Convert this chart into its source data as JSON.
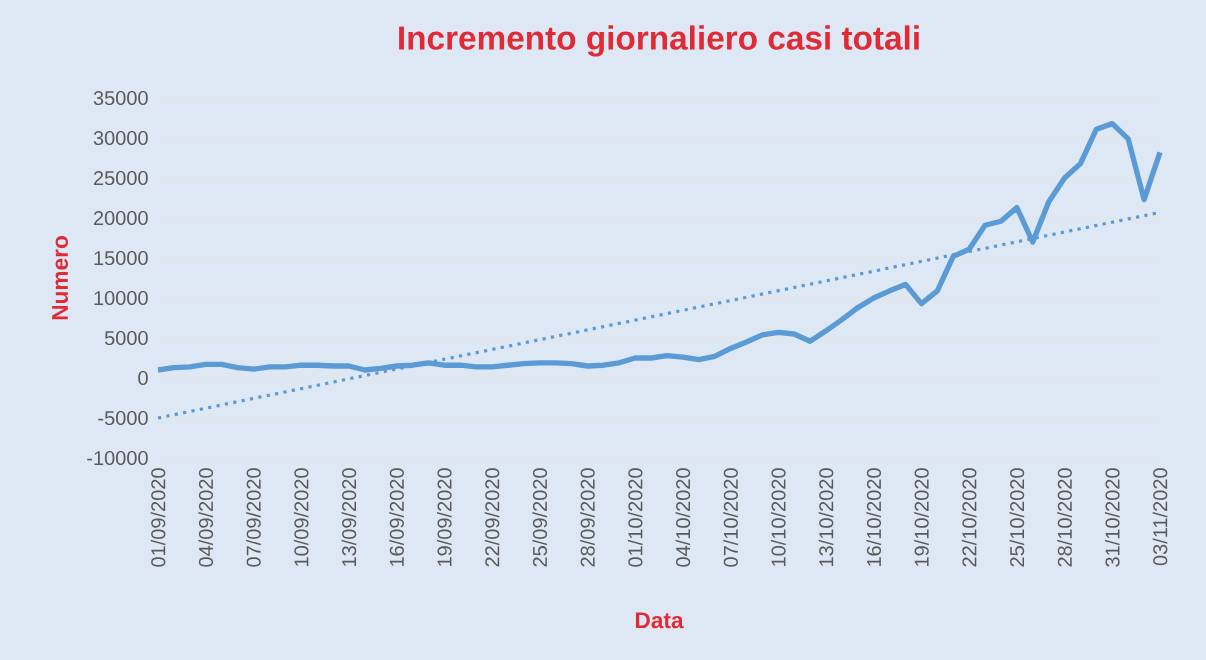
{
  "chart_data": {
    "type": "line",
    "title": "Incremento giornaliero casi totali",
    "xlabel": "Data",
    "ylabel": "Numero",
    "x": [
      "2020-09-01",
      "2020-09-02",
      "2020-09-03",
      "2020-09-04",
      "2020-09-05",
      "2020-09-06",
      "2020-09-07",
      "2020-09-08",
      "2020-09-09",
      "2020-09-10",
      "2020-09-11",
      "2020-09-12",
      "2020-09-13",
      "2020-09-14",
      "2020-09-15",
      "2020-09-16",
      "2020-09-17",
      "2020-09-18",
      "2020-09-19",
      "2020-09-20",
      "2020-09-21",
      "2020-09-22",
      "2020-09-23",
      "2020-09-24",
      "2020-09-25",
      "2020-09-26",
      "2020-09-27",
      "2020-09-28",
      "2020-09-29",
      "2020-09-30",
      "2020-10-01",
      "2020-10-02",
      "2020-10-03",
      "2020-10-04",
      "2020-10-05",
      "2020-10-06",
      "2020-10-07",
      "2020-10-08",
      "2020-10-09",
      "2020-10-10",
      "2020-10-11",
      "2020-10-12",
      "2020-10-13",
      "2020-10-14",
      "2020-10-15",
      "2020-10-16",
      "2020-10-17",
      "2020-10-18",
      "2020-10-19",
      "2020-10-20",
      "2020-10-21",
      "2020-10-22",
      "2020-10-23",
      "2020-10-24",
      "2020-10-25",
      "2020-10-26",
      "2020-10-27",
      "2020-10-28",
      "2020-10-29",
      "2020-10-30",
      "2020-10-31",
      "2020-11-01",
      "2020-11-02",
      "2020-11-03"
    ],
    "series": [
      {
        "color": "#5b9bd5",
        "line_style": "solid",
        "values": [
          1000,
          1300,
          1400,
          1700,
          1700,
          1300,
          1100,
          1400,
          1400,
          1600,
          1600,
          1500,
          1500,
          1000,
          1200,
          1500,
          1600,
          1900,
          1600,
          1600,
          1400,
          1400,
          1600,
          1800,
          1900,
          1900,
          1800,
          1500,
          1600,
          1900,
          2500,
          2500,
          2800,
          2600,
          2300,
          2700,
          3700,
          4500,
          5400,
          5700,
          5500,
          4600,
          5900,
          7300,
          8800,
          10000,
          10900,
          11700,
          9300,
          10900,
          15200,
          16100,
          19100,
          19600,
          21300,
          17000,
          22000,
          25000,
          26800,
          31100,
          31800,
          29900,
          22300,
          28200
        ]
      },
      {
        "color": "#5b9bd5",
        "line_style": "dotted",
        "x": [
          "2020-09-01",
          "2020-11-03"
        ],
        "values": [
          -5000,
          20700
        ]
      }
    ],
    "xlim": [
      "2020-09-01",
      "2020-11-03"
    ],
    "xticks": [
      {
        "value": "2020-09-01",
        "label": "01/09/2020"
      },
      {
        "value": "2020-09-04",
        "label": "04/09/2020"
      },
      {
        "value": "2020-09-07",
        "label": "07/09/2020"
      },
      {
        "value": "2020-09-10",
        "label": "10/09/2020"
      },
      {
        "value": "2020-09-13",
        "label": "13/09/2020"
      },
      {
        "value": "2020-09-16",
        "label": "16/09/2020"
      },
      {
        "value": "2020-09-19",
        "label": "19/09/2020"
      },
      {
        "value": "2020-09-22",
        "label": "22/09/2020"
      },
      {
        "value": "2020-09-25",
        "label": "25/09/2020"
      },
      {
        "value": "2020-09-28",
        "label": "28/09/2020"
      },
      {
        "value": "2020-10-01",
        "label": "01/10/2020"
      },
      {
        "value": "2020-10-04",
        "label": "04/10/2020"
      },
      {
        "value": "2020-10-07",
        "label": "07/10/2020"
      },
      {
        "value": "2020-10-10",
        "label": "10/10/2020"
      },
      {
        "value": "2020-10-13",
        "label": "13/10/2020"
      },
      {
        "value": "2020-10-16",
        "label": "16/10/2020"
      },
      {
        "value": "2020-10-19",
        "label": "19/10/2020"
      },
      {
        "value": "2020-10-22",
        "label": "22/10/2020"
      },
      {
        "value": "2020-10-25",
        "label": "25/10/2020"
      },
      {
        "value": "2020-10-28",
        "label": "28/10/2020"
      },
      {
        "value": "2020-10-31",
        "label": "31/10/2020"
      },
      {
        "value": "2020-11-03",
        "label": "03/11/2020"
      }
    ],
    "ylim": [
      -10000,
      35000
    ],
    "yticks": [
      -10000,
      -5000,
      0,
      5000,
      10000,
      15000,
      20000,
      25000,
      30000,
      35000
    ],
    "grid": "y",
    "legend": false,
    "marker": "none"
  }
}
